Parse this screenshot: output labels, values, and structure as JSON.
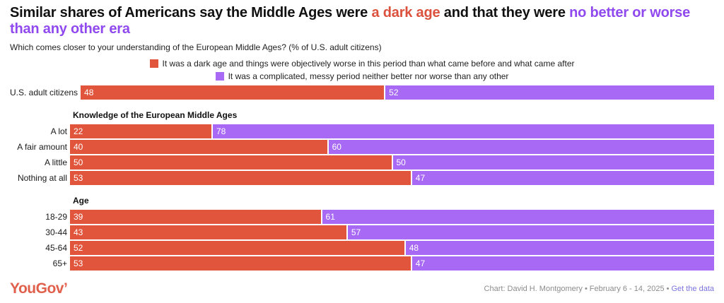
{
  "title_segments": [
    {
      "text": "Similar shares of Americans say the Middle Ages were ",
      "color": "#111111"
    },
    {
      "text": "a dark age",
      "color": "#DB513E"
    },
    {
      "text": " and that they were ",
      "color": "#111111"
    },
    {
      "text": "no better or worse than any other era",
      "color": "#8F49EF"
    }
  ],
  "subtitle": "Which comes closer to your understanding of the European Middle Ages? (% of U.S. adult citizens)",
  "legend": [
    {
      "label": "It was a dark age and things were objectively worse in this period than what came before and what came after",
      "color": "#E0553C"
    },
    {
      "label": "It was a complicated, messy period neither better nor worse than any other",
      "color": "#A86AF5"
    }
  ],
  "chart_data": {
    "type": "bar",
    "orientation": "horizontal",
    "stacked": true,
    "unit": "%",
    "xlim": [
      0,
      100
    ],
    "value_labels": "inside-left",
    "series": [
      {
        "name": "It was a dark age and things were objectively worse in this period than what came before and what came after",
        "color": "#E0553C"
      },
      {
        "name": "It was a complicated, messy period neither better nor worse than any other",
        "color": "#A86AF5"
      }
    ],
    "groups": [
      {
        "header": "",
        "rows": [
          {
            "label": "U.S. adult citizens",
            "values": [
              48,
              52
            ]
          }
        ]
      },
      {
        "header": "Knowledge of the European Middle Ages",
        "rows": [
          {
            "label": "A lot",
            "values": [
              22,
              78
            ]
          },
          {
            "label": "A fair amount",
            "values": [
              40,
              60
            ]
          },
          {
            "label": "A little",
            "values": [
              50,
              50
            ]
          },
          {
            "label": "Nothing at all",
            "values": [
              53,
              47
            ]
          }
        ]
      },
      {
        "header": "Age",
        "rows": [
          {
            "label": "18-29",
            "values": [
              39,
              61
            ]
          },
          {
            "label": "30-44",
            "values": [
              43,
              57
            ]
          },
          {
            "label": "45-64",
            "values": [
              52,
              48
            ]
          },
          {
            "label": "65+",
            "values": [
              53,
              47
            ]
          }
        ]
      }
    ]
  },
  "footer": {
    "logo": "YouGov’",
    "credit": "Chart: David H. Montgomery",
    "separator": "•",
    "date": "February 6 - 14, 2025",
    "link_label": "Get the data"
  },
  "colors": {
    "dark_age_bar": "#E0553C",
    "complicated_bar": "#A86AF5",
    "title_accent_red": "#DB513E",
    "title_accent_purple": "#8F49EF",
    "link": "#7B74E0",
    "footer_text": "#8C8C8C",
    "logo": "#E0604C"
  }
}
